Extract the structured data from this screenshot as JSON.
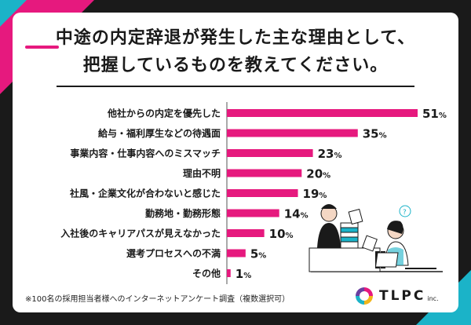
{
  "title": {
    "line1": "中途の内定辞退が発生した主な理由として、",
    "line2": "把握しているものを教えてください。"
  },
  "chart_data": {
    "type": "bar",
    "orientation": "horizontal",
    "categories": [
      "他社からの内定を優先した",
      "給与・福利厚生などの待遇面",
      "事業内容・仕事内容へのミスマッチ",
      "理由不明",
      "社風・企業文化が合わないと感じた",
      "勤務地・勤務形態",
      "入社後のキャリアパスが見えなかった",
      "選考プロセスへの不満",
      "その他"
    ],
    "values": [
      51,
      35,
      23,
      20,
      19,
      14,
      10,
      5,
      1
    ],
    "value_suffix": "%",
    "xlim": [
      0,
      60
    ],
    "bar_color": "#e6197e"
  },
  "footnote": "※100名の採用担当者様へのインターネットアンケート調査（複数選択可）",
  "logo": {
    "text": "TLPC",
    "sub": "inc."
  },
  "colors": {
    "accent": "#e6197e",
    "teal": "#1bb3c8",
    "dark": "#1a1a1a"
  }
}
